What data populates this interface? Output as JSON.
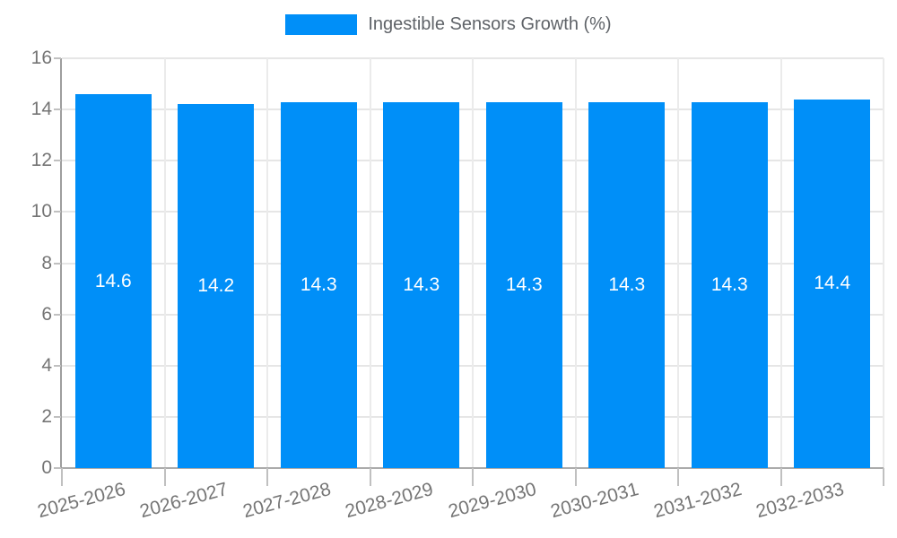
{
  "legend": {
    "label": "Ingestible Sensors Growth (%)"
  },
  "chart_data": {
    "type": "bar",
    "title": "",
    "legend_entries": [
      "Ingestible Sensors Growth (%)"
    ],
    "legend_position": "top",
    "categories": [
      "2025-2026",
      "2026-2027",
      "2027-2028",
      "2028-2029",
      "2029-2030",
      "2030-2031",
      "2031-2032",
      "2032-2033"
    ],
    "values": [
      14.6,
      14.2,
      14.3,
      14.3,
      14.3,
      14.3,
      14.3,
      14.4
    ],
    "value_labels": [
      "14.6",
      "14.2",
      "14.3",
      "14.3",
      "14.3",
      "14.3",
      "14.3",
      "14.4"
    ],
    "xlabel": "",
    "ylabel": "",
    "ylim": [
      0,
      16
    ],
    "yticks": [
      0,
      2,
      4,
      6,
      8,
      10,
      12,
      14,
      16
    ],
    "grid": true
  },
  "colors": {
    "bar": "#008ff8",
    "bar_value_text": "#ffffff",
    "axis_tick_text": "#757575",
    "legend_text": "#5f6368",
    "gridline": "#e6e6e6",
    "axis_line": "#9e9e9e",
    "tick_mark": "#c0c0c0"
  }
}
